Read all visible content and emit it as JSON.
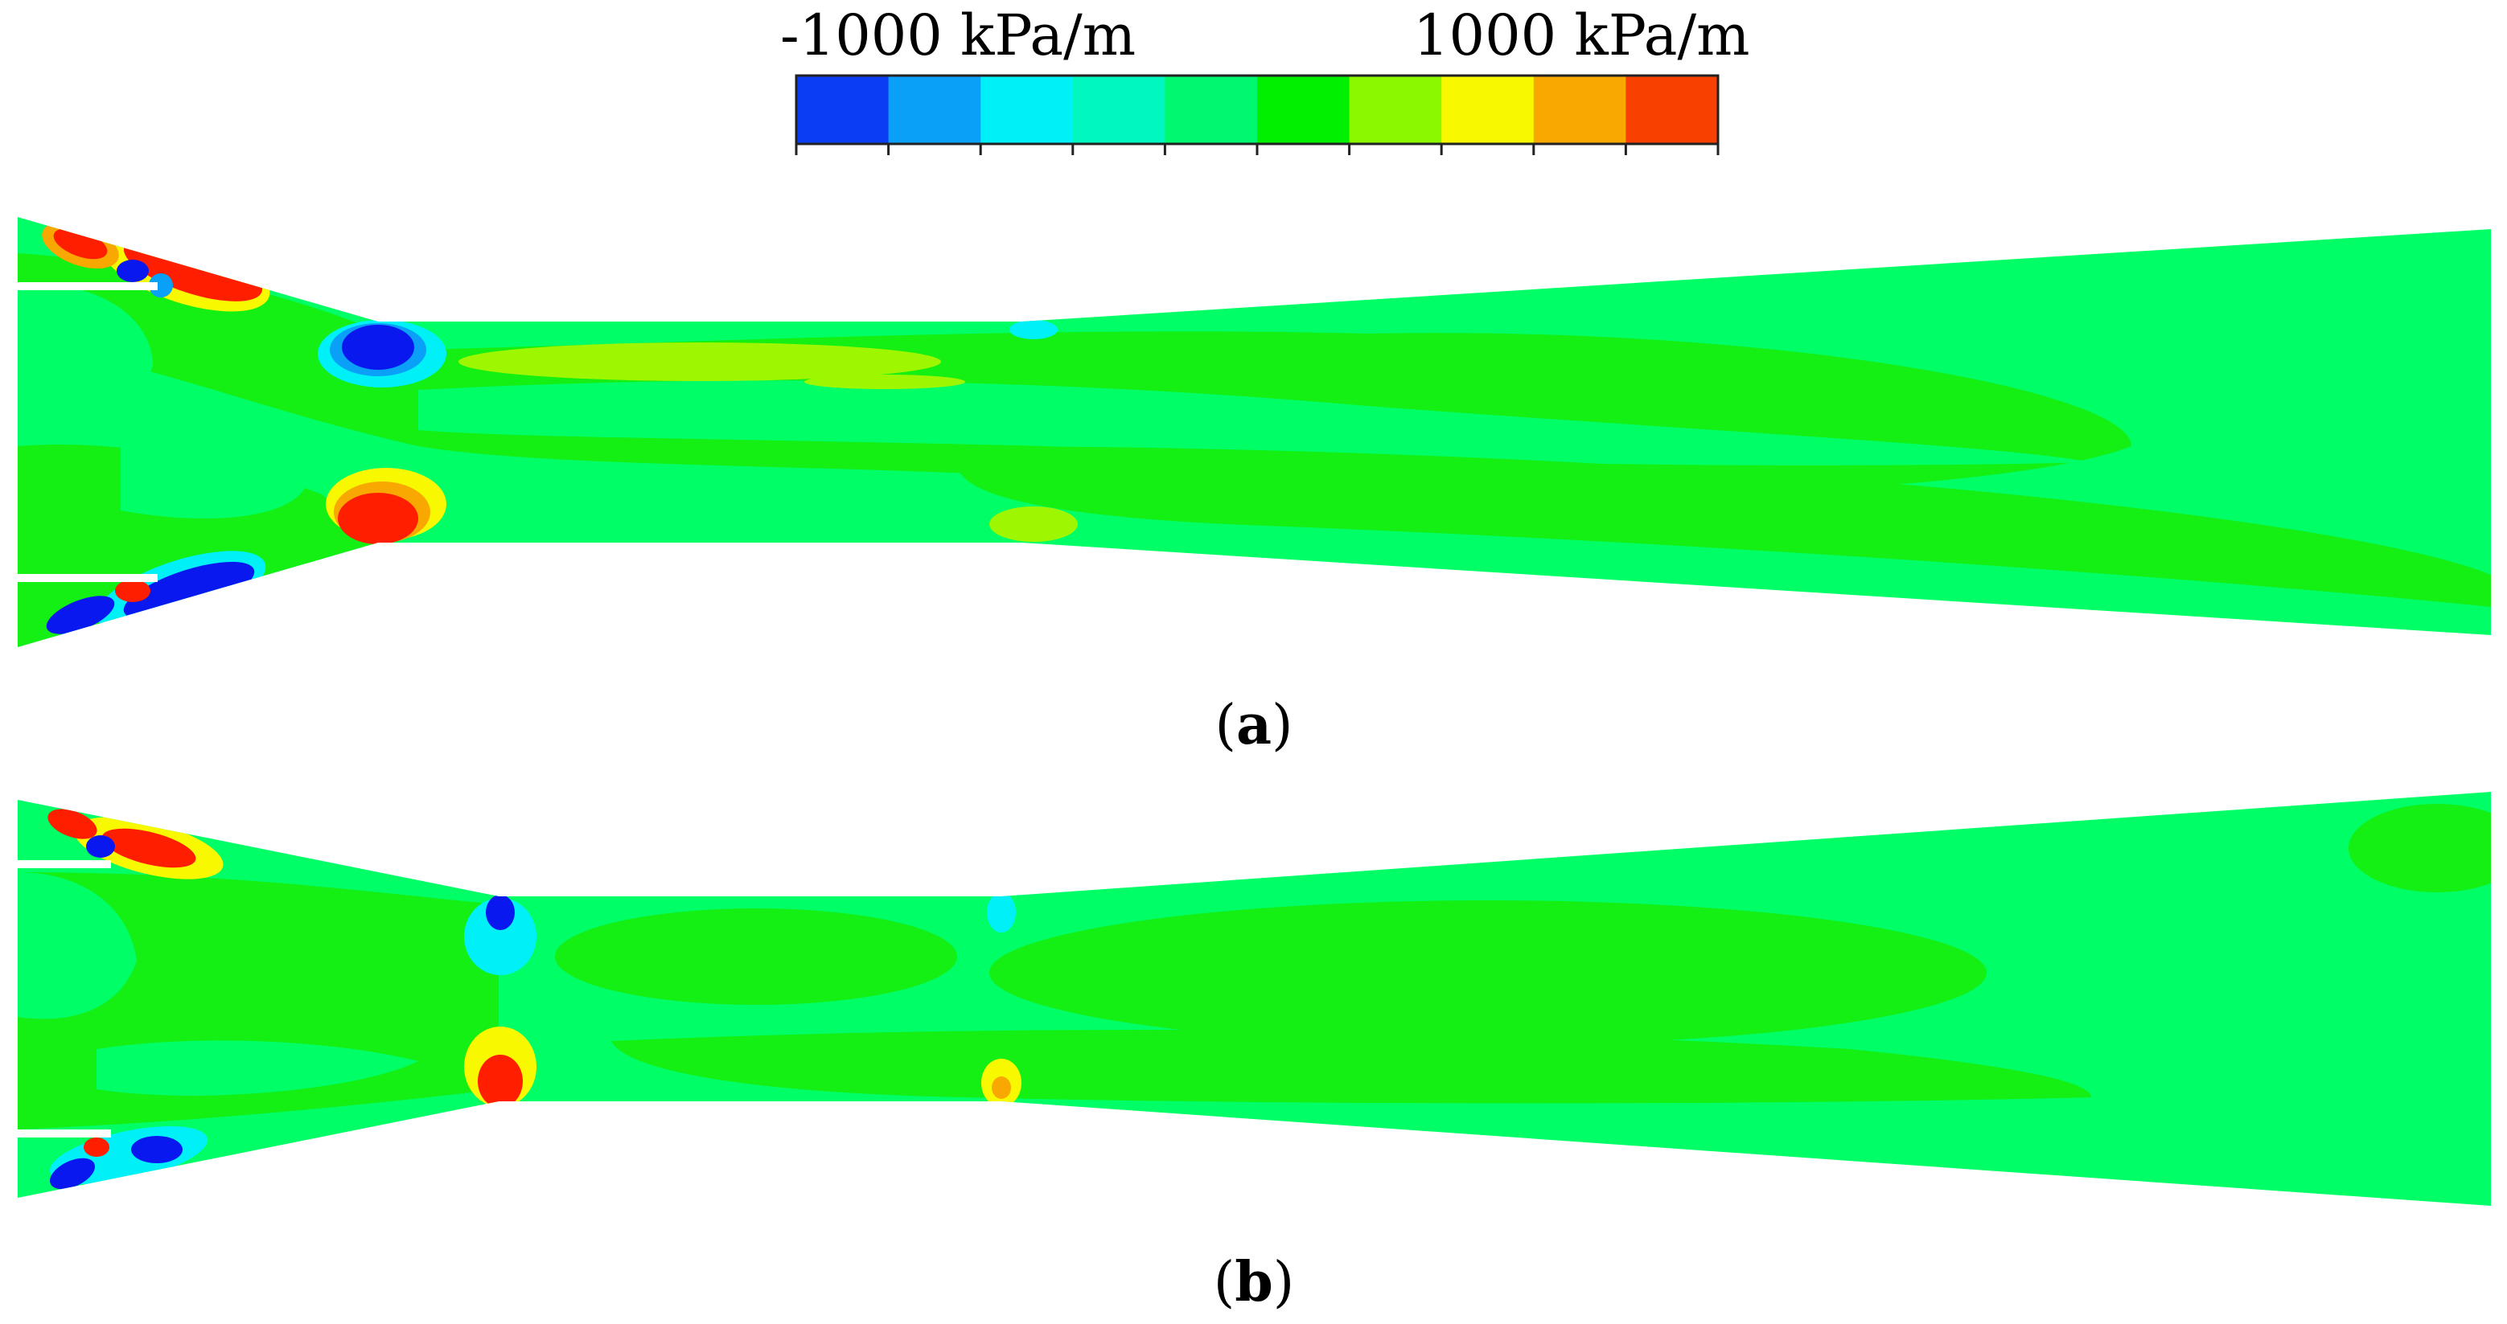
{
  "legend": {
    "min_label": "-1000 kPa/m",
    "max_label": "1000 kPa/m",
    "range": [
      -1000,
      1000
    ],
    "colors": [
      "#0a3ef5",
      "#0aa0f8",
      "#00f0f8",
      "#00f8c0",
      "#00f870",
      "#00f000",
      "#8cf800",
      "#f8f800",
      "#f8a800",
      "#f84000"
    ]
  },
  "panels": [
    {
      "id": "a",
      "letter": "a"
    },
    {
      "id": "b",
      "letter": "b"
    }
  ],
  "palette": {
    "base": "#00ff66",
    "mid": "#14ef14",
    "high": "#9ef700",
    "hot": "#ff1e00",
    "cold": "#0a18f0",
    "cyan": "#00f0f8",
    "sky": "#0aa0f8",
    "yellow": "#f8f800",
    "orange": "#f8a800"
  }
}
